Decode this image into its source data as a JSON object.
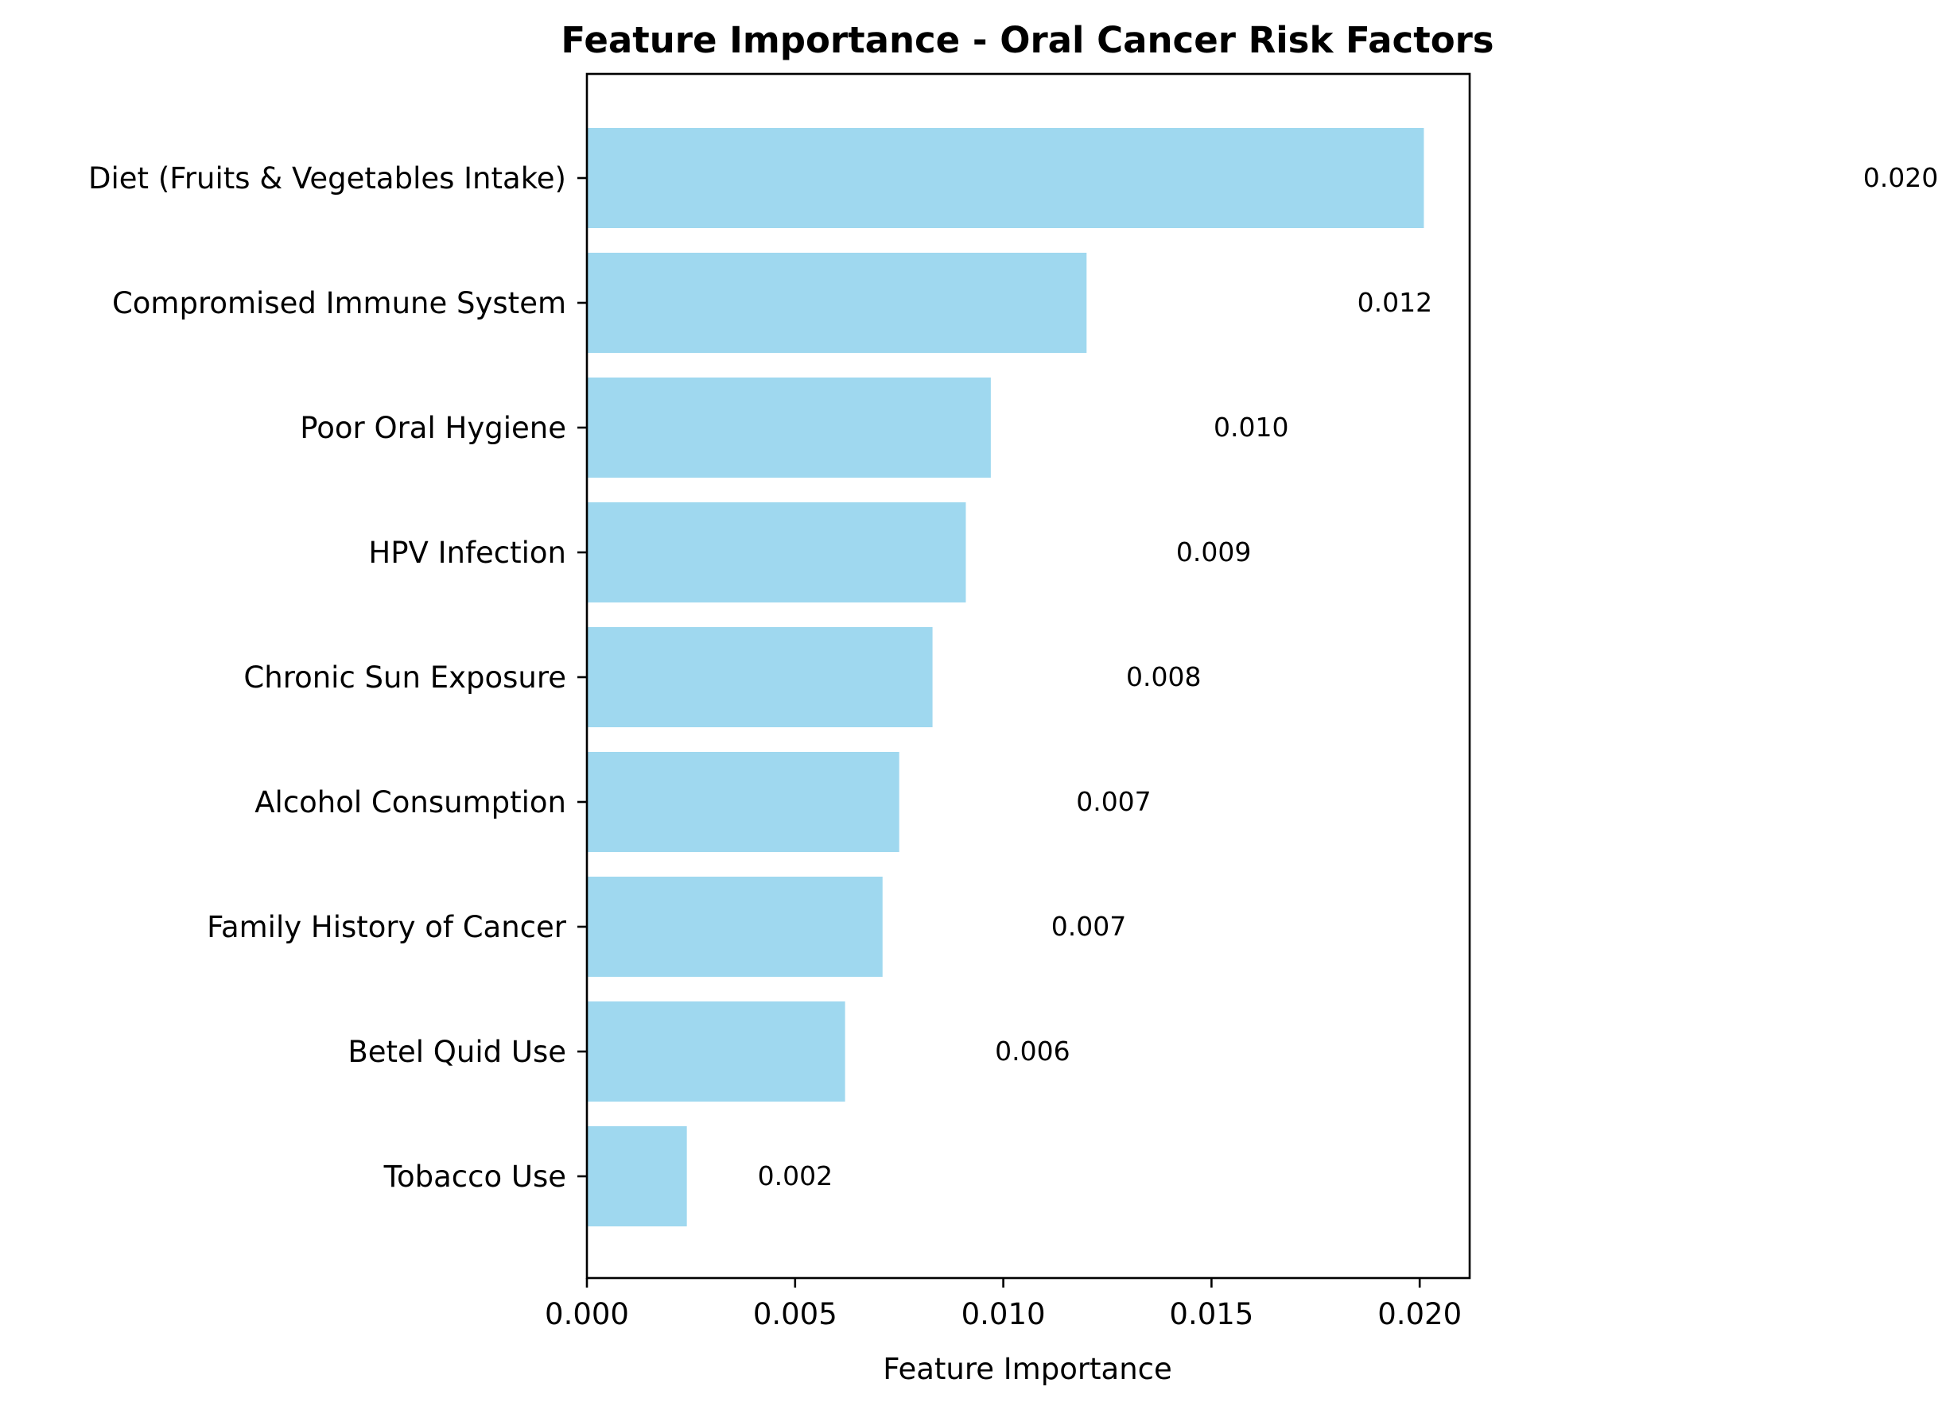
{
  "chart_data": {
    "type": "bar",
    "orientation": "horizontal",
    "title": "Feature Importance - Oral Cancer Risk Factors",
    "xlabel": "Feature Importance",
    "ylabel": "",
    "xlim": [
      0,
      0.0212
    ],
    "xticks": [
      0.0,
      0.005,
      0.01,
      0.015,
      0.02
    ],
    "xtick_labels": [
      "0.000",
      "0.005",
      "0.010",
      "0.015",
      "0.020"
    ],
    "categories": [
      "Diet (Fruits & Vegetables Intake)",
      "Compromised Immune System",
      "Poor Oral Hygiene",
      "HPV Infection",
      "Chronic Sun Exposure",
      "Alcohol Consumption",
      "Family History of Cancer",
      "Betel Quid Use",
      "Tobacco Use"
    ],
    "values": [
      0.0201,
      0.012,
      0.0097,
      0.0091,
      0.0083,
      0.0075,
      0.0071,
      0.0062,
      0.0024
    ],
    "data_labels": [
      "0.020",
      "0.012",
      "0.010",
      "0.009",
      "0.008",
      "0.007",
      "0.007",
      "0.006",
      "0.002"
    ],
    "bar_color": "#87ceeb",
    "bar_opacity": 0.8,
    "grid": false
  }
}
